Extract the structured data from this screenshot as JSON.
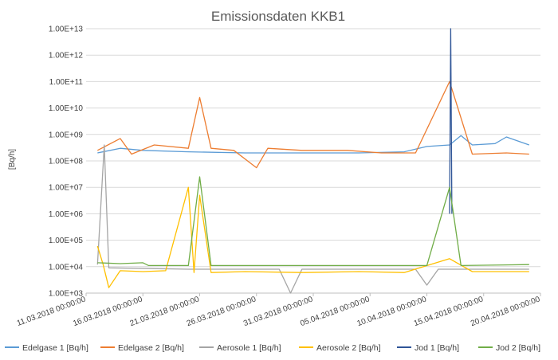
{
  "chart_data": {
    "type": "line",
    "title": "Emissionsdaten KKB1",
    "ylabel": "[Bq/h]",
    "xlabel": "",
    "yscale": "log",
    "ylim": [
      1000,
      10000000000000
    ],
    "y_tick_labels": [
      "1.00E+03",
      "1.00E+04",
      "1.00E+05",
      "1.00E+06",
      "1.00E+07",
      "1.00E+08",
      "1.00E+09",
      "1.00E+10",
      "1.00E+11",
      "1.00E+12",
      "1.00E+13"
    ],
    "x_tick_labels": [
      "11.03.2018 00:00:00",
      "16.03.2018 00:00:00",
      "21.03.2018 00:00:00",
      "26.03.2018 00:00:00",
      "31.03.2018 00:00:00",
      "05.04.2018 00:00:00",
      "10.04.2018 00:00:00",
      "15.04.2018 00:00:00",
      "20.04.2018 00:00:00"
    ],
    "xlim": [
      "2018-03-11",
      "2018-04-20"
    ],
    "grid": true,
    "legend_position": "bottom",
    "series": [
      {
        "name": "Edelgase 1 [Bq/h]",
        "color": "#5b9bd5",
        "points": [
          [
            "2018-03-12",
            200000000
          ],
          [
            "2018-03-14",
            300000000
          ],
          [
            "2018-03-16",
            250000000
          ],
          [
            "2018-03-20",
            220000000
          ],
          [
            "2018-03-25",
            200000000
          ],
          [
            "2018-03-30",
            200000000
          ],
          [
            "2018-04-04",
            200000000
          ],
          [
            "2018-04-08",
            220000000
          ],
          [
            "2018-04-10",
            350000000
          ],
          [
            "2018-04-12",
            400000000
          ],
          [
            "2018-04-13",
            900000000
          ],
          [
            "2018-04-14",
            400000000
          ],
          [
            "2018-04-16",
            450000000
          ],
          [
            "2018-04-17",
            800000000
          ],
          [
            "2018-04-19",
            400000000
          ]
        ]
      },
      {
        "name": "Edelgase 2 [Bq/h]",
        "color": "#ed7d31",
        "points": [
          [
            "2018-03-12",
            250000000
          ],
          [
            "2018-03-14",
            700000000
          ],
          [
            "2018-03-15",
            180000000
          ],
          [
            "2018-03-17",
            400000000
          ],
          [
            "2018-03-20",
            300000000
          ],
          [
            "2018-03-21",
            25000000000
          ],
          [
            "2018-03-22",
            300000000
          ],
          [
            "2018-03-24",
            250000000
          ],
          [
            "2018-03-26",
            55000000
          ],
          [
            "2018-03-27",
            300000000
          ],
          [
            "2018-03-30",
            250000000
          ],
          [
            "2018-04-03",
            250000000
          ],
          [
            "2018-04-06",
            200000000
          ],
          [
            "2018-04-09",
            200000000
          ],
          [
            "2018-04-12",
            100000000000
          ],
          [
            "2018-04-14",
            180000000
          ],
          [
            "2018-04-17",
            200000000
          ],
          [
            "2018-04-19",
            180000000
          ]
        ]
      },
      {
        "name": "Aerosole 1 [Bq/h]",
        "color": "#a5a5a5",
        "points": [
          [
            "2018-03-12",
            12000
          ],
          [
            "2018-03-12.6",
            400000000
          ],
          [
            "2018-03-13",
            9000
          ],
          [
            "2018-03-20",
            8000
          ],
          [
            "2018-03-28",
            8000
          ],
          [
            "2018-03-29",
            1000
          ],
          [
            "2018-03-30",
            8000
          ],
          [
            "2018-04-09",
            8000
          ],
          [
            "2018-04-10",
            2000
          ],
          [
            "2018-04-11",
            8000
          ],
          [
            "2018-04-19",
            8000
          ]
        ]
      },
      {
        "name": "Aerosole 2 [Bq/h]",
        "color": "#ffc000",
        "points": [
          [
            "2018-03-12",
            60000
          ],
          [
            "2018-03-12.5",
            12000
          ],
          [
            "2018-03-13",
            1600
          ],
          [
            "2018-03-14",
            7000
          ],
          [
            "2018-03-16",
            6500
          ],
          [
            "2018-03-18",
            7000
          ],
          [
            "2018-03-20",
            10000000
          ],
          [
            "2018-03-20.5",
            6000
          ],
          [
            "2018-03-21",
            5000000
          ],
          [
            "2018-03-22",
            6000
          ],
          [
            "2018-03-25",
            6500
          ],
          [
            "2018-03-30",
            6000
          ],
          [
            "2018-04-04",
            6500
          ],
          [
            "2018-04-08",
            6000
          ],
          [
            "2018-04-12",
            20000
          ],
          [
            "2018-04-14",
            6500
          ],
          [
            "2018-04-19",
            6500
          ]
        ]
      },
      {
        "name": "Jod 1 [Bq/h]",
        "color": "#2f5597",
        "points": [
          [
            "2018-04-12",
            1000000
          ],
          [
            "2018-04-12.1",
            10000000000000
          ],
          [
            "2018-04-12.2",
            1000000
          ]
        ]
      },
      {
        "name": "Jod 2 [Bq/h]",
        "color": "#70ad47",
        "points": [
          [
            "2018-03-12",
            14000
          ],
          [
            "2018-03-14",
            13000
          ],
          [
            "2018-03-16",
            14000
          ],
          [
            "2018-03-16.5",
            11000
          ],
          [
            "2018-03-20",
            11000
          ],
          [
            "2018-03-21",
            25000000
          ],
          [
            "2018-03-22",
            11000
          ],
          [
            "2018-03-28",
            11000
          ],
          [
            "2018-04-04",
            11000
          ],
          [
            "2018-04-10",
            11000
          ],
          [
            "2018-04-12",
            10000000
          ],
          [
            "2018-04-13",
            11000
          ],
          [
            "2018-04-19",
            12000
          ]
        ]
      }
    ]
  }
}
